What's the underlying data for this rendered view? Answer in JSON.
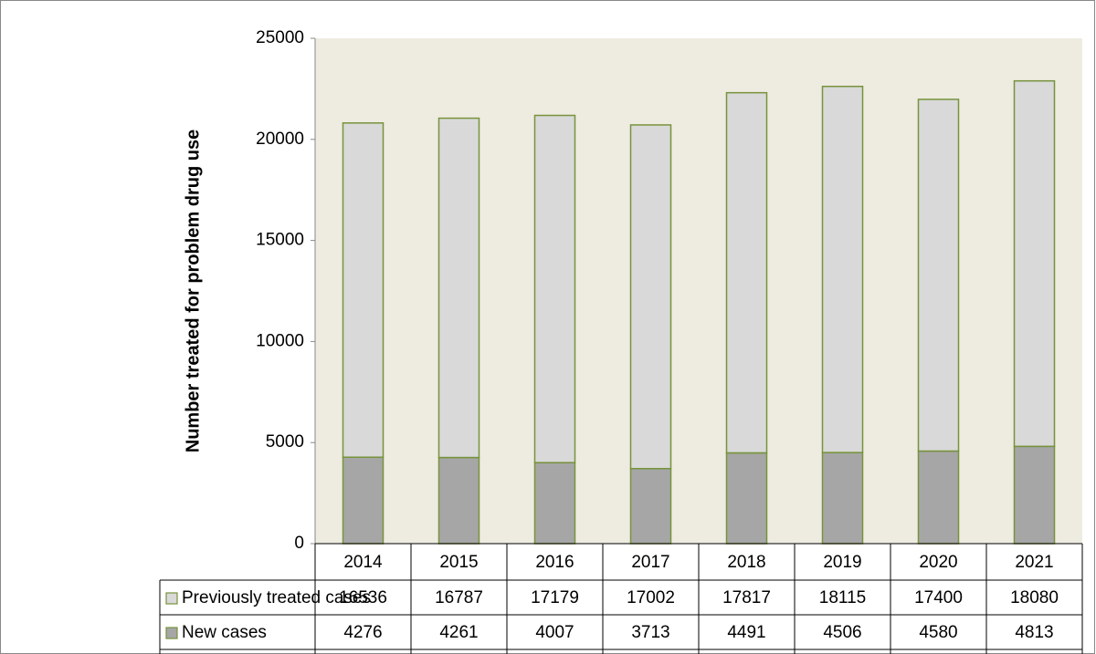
{
  "chart_data": {
    "type": "stacked_bar",
    "y_label": "Number treated for problem drug use",
    "categories": [
      "2014",
      "2015",
      "2016",
      "2017",
      "2018",
      "2019",
      "2020",
      "2021"
    ],
    "series": [
      {
        "name": "Previously treated cases",
        "color": "#d9d9d9",
        "values": [
          16536,
          16787,
          17179,
          17002,
          17817,
          18115,
          17400,
          18080
        ]
      },
      {
        "name": "New cases",
        "color": "#a6a6a6",
        "values": [
          4276,
          4261,
          4007,
          3713,
          4491,
          4506,
          4580,
          4813
        ]
      }
    ],
    "edge_color": "#77933c",
    "plot_background": "#eeebe0",
    "ylim": [
      0,
      25000
    ],
    "yticks": [
      0,
      5000,
      10000,
      15000,
      20000,
      25000
    ],
    "grid": false,
    "legend": "data-table"
  }
}
